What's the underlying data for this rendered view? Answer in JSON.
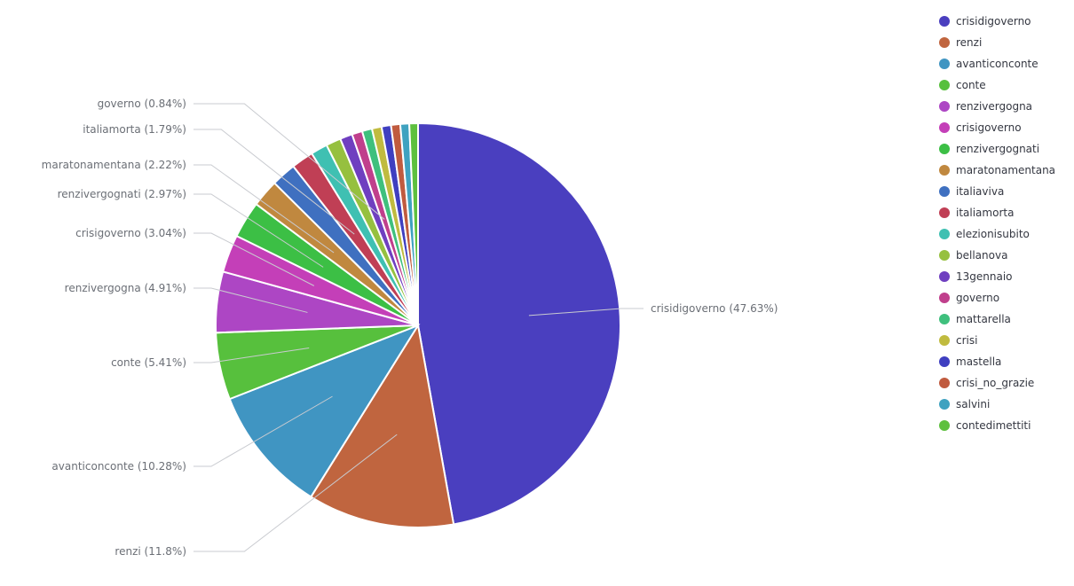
{
  "chart_data": {
    "type": "pie",
    "slices": [
      {
        "label": "crisidigoverno",
        "percent": 47.63,
        "color": "#4a3fbf",
        "label_text": "crisidigoverno (47.63%)"
      },
      {
        "label": "renzi",
        "percent": 11.8,
        "color": "#c0653f",
        "label_text": "renzi (11.8%)"
      },
      {
        "label": "avanticonconte",
        "percent": 10.28,
        "color": "#4095c2",
        "label_text": "avanticonconte (10.28%)"
      },
      {
        "label": "conte",
        "percent": 5.41,
        "color": "#57c03d",
        "label_text": "conte (5.41%)"
      },
      {
        "label": "renzivergogna",
        "percent": 4.91,
        "color": "#ad46c4",
        "label_text": "renzivergogna (4.91%)"
      },
      {
        "label": "crisigoverno",
        "percent": 3.04,
        "color": "#c43fb8",
        "label_text": "crisigoverno (3.04%)"
      },
      {
        "label": "renzivergognati",
        "percent": 2.97,
        "color": "#3cbf45",
        "label_text": "renzivergognati (2.97%)"
      },
      {
        "label": "maratonamentana",
        "percent": 2.22,
        "color": "#c0883f",
        "label_text": "maratonamentana (2.22%)"
      },
      {
        "label": "italiaviva",
        "percent": 2.0,
        "color": "#3f70c0",
        "label_text": ""
      },
      {
        "label": "italiamorta",
        "percent": 1.79,
        "color": "#c03f55",
        "label_text": "italiamorta (1.79%)"
      },
      {
        "label": "elezionisubito",
        "percent": 1.35,
        "color": "#3fc0b2",
        "label_text": ""
      },
      {
        "label": "bellanova",
        "percent": 1.2,
        "color": "#96c03f",
        "label_text": ""
      },
      {
        "label": "13gennaio",
        "percent": 1.0,
        "color": "#6f3fc0",
        "label_text": ""
      },
      {
        "label": "governo",
        "percent": 0.84,
        "color": "#c03f8c",
        "label_text": "governo (0.84%)"
      },
      {
        "label": "mattarella",
        "percent": 0.8,
        "color": "#3fc07d",
        "label_text": ""
      },
      {
        "label": "crisi",
        "percent": 0.78,
        "color": "#c0bb3f",
        "label_text": ""
      },
      {
        "label": "mastella",
        "percent": 0.76,
        "color": "#3f3fc0",
        "label_text": ""
      },
      {
        "label": "crisi_no_grazie",
        "percent": 0.74,
        "color": "#c05b3f",
        "label_text": ""
      },
      {
        "label": "salvini",
        "percent": 0.72,
        "color": "#3fa2c0",
        "label_text": ""
      },
      {
        "label": "contedimettiti",
        "percent": 0.7,
        "color": "#5ec03f",
        "label_text": ""
      }
    ],
    "legend_position": "top-right"
  }
}
